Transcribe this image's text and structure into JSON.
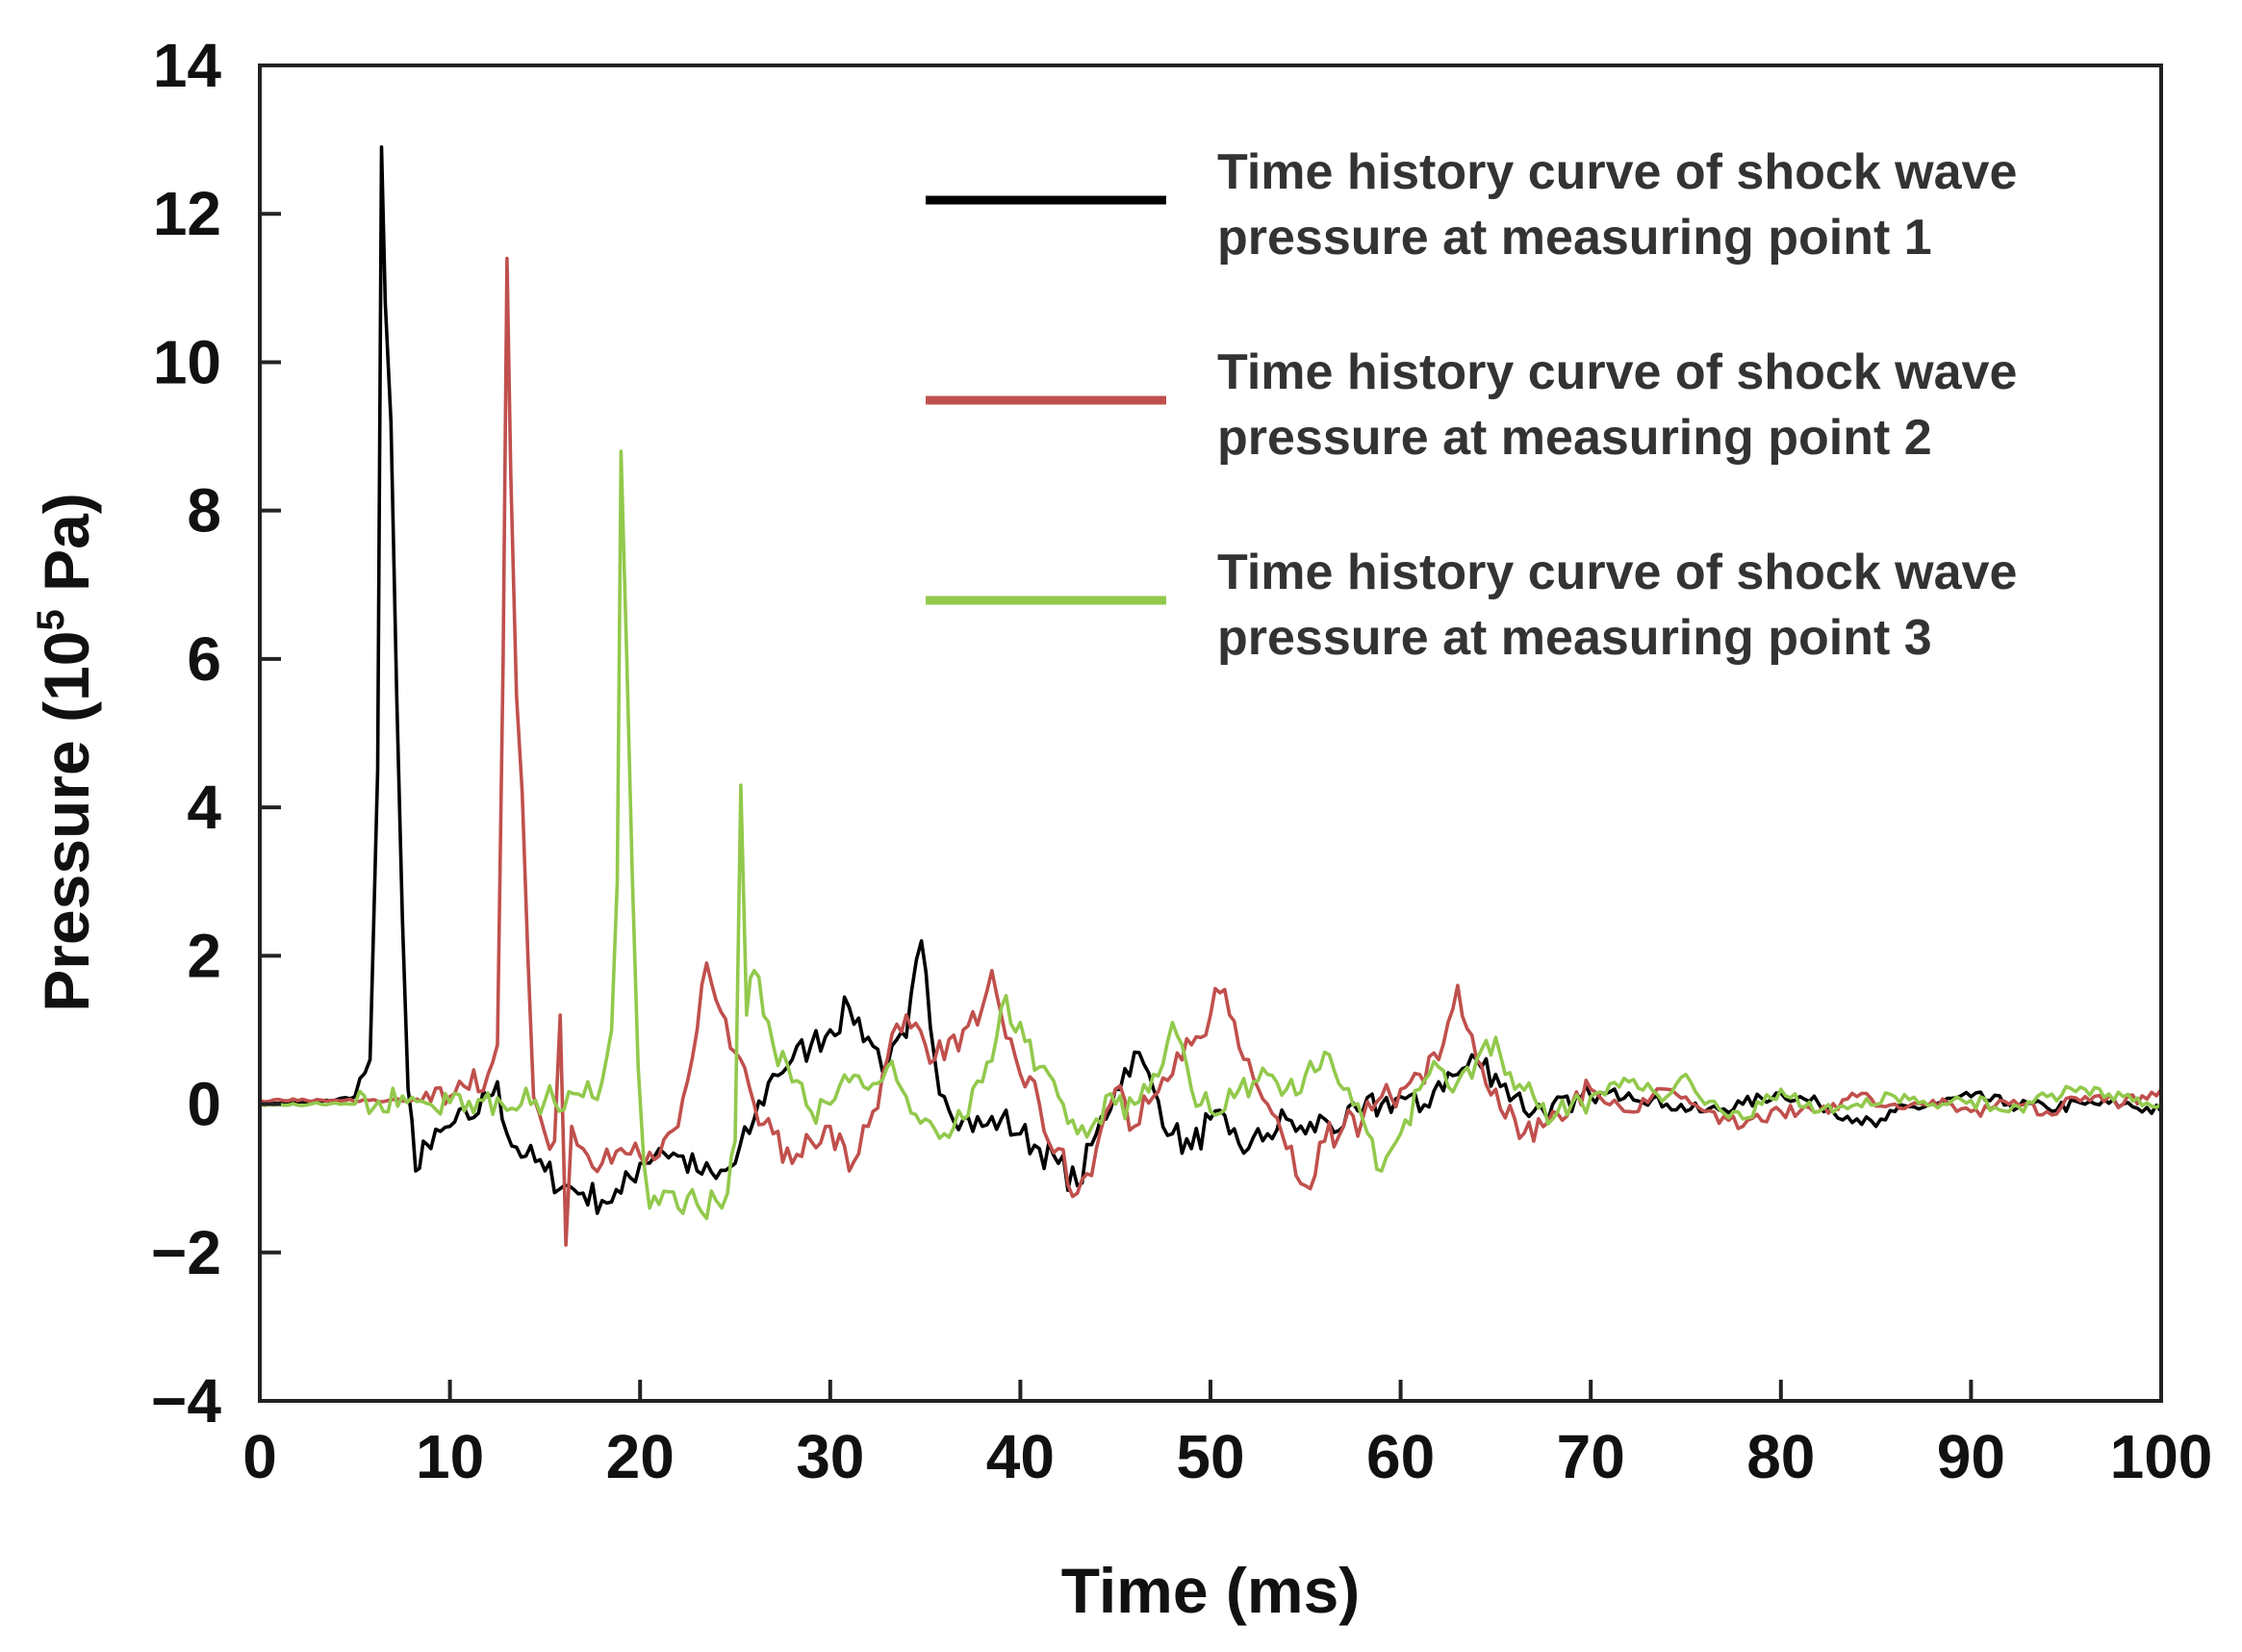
{
  "chart_data": {
    "type": "line",
    "xlabel": "Time (ms)",
    "ylabel_main": "Pressure (10",
    "ylabel_sup": "5",
    "ylabel_tail": " Pa)",
    "xlim": [
      0,
      100
    ],
    "ylim": [
      -4,
      14
    ],
    "x_ticks": [
      0,
      10,
      20,
      30,
      40,
      50,
      60,
      70,
      80,
      90,
      100
    ],
    "x_tick_labels": [
      "0",
      "10",
      "20",
      "30",
      "40",
      "50",
      "60",
      "70",
      "80",
      "90",
      "100"
    ],
    "y_ticks": [
      -4,
      -2,
      0,
      2,
      4,
      6,
      8,
      10,
      12,
      14
    ],
    "y_tick_labels": [
      "−4",
      "−2",
      "0",
      "2",
      "4",
      "6",
      "8",
      "10",
      "12",
      "14"
    ],
    "grid": false,
    "legend_position": "top-right",
    "series": [
      {
        "legend_line1": "Time history curve of shock wave",
        "legend_line2": "pressure at measuring point 1",
        "color": "#000000",
        "points": [
          [
            0,
            0.02
          ],
          [
            3,
            0.02
          ],
          [
            5,
            0.1
          ],
          [
            5.8,
            0.6
          ],
          [
            6.2,
            4.5
          ],
          [
            6.4,
            12.9
          ],
          [
            6.6,
            10.8
          ],
          [
            6.9,
            9.2
          ],
          [
            7.2,
            5.5
          ],
          [
            7.5,
            2.5
          ],
          [
            7.8,
            0.2
          ],
          [
            8.2,
            -0.9
          ],
          [
            8.6,
            -0.5
          ],
          [
            9,
            -0.6
          ],
          [
            10,
            -0.3
          ],
          [
            11,
            -0.2
          ],
          [
            12,
            0.1
          ],
          [
            12.5,
            0.3
          ],
          [
            13,
            -0.4
          ],
          [
            14,
            -0.7
          ],
          [
            15,
            -0.9
          ],
          [
            16,
            -1.1
          ],
          [
            17,
            -1.2
          ],
          [
            18,
            -1.3
          ],
          [
            19,
            -1.2
          ],
          [
            20,
            -0.8
          ],
          [
            21,
            -0.6
          ],
          [
            22,
            -0.7
          ],
          [
            23,
            -0.9
          ],
          [
            24,
            -1.0
          ],
          [
            25,
            -0.8
          ],
          [
            26,
            -0.2
          ],
          [
            27,
            0.4
          ],
          [
            28,
            0.6
          ],
          [
            29,
            0.8
          ],
          [
            30,
            1.0
          ],
          [
            31,
            1.3
          ],
          [
            32,
            0.9
          ],
          [
            33,
            0.5
          ],
          [
            34,
            0.9
          ],
          [
            34.8,
            2.2
          ],
          [
            35.5,
            0.6
          ],
          [
            36,
            0.1
          ],
          [
            37,
            -0.2
          ],
          [
            38,
            -0.3
          ],
          [
            39,
            -0.2
          ],
          [
            40,
            -0.4
          ],
          [
            41,
            -0.6
          ],
          [
            42,
            -0.8
          ],
          [
            43,
            -1.1
          ],
          [
            44,
            -0.4
          ],
          [
            45,
            0.2
          ],
          [
            46,
            0.7
          ],
          [
            47,
            0.2
          ],
          [
            48,
            -0.4
          ],
          [
            49,
            -0.6
          ],
          [
            50,
            -0.2
          ],
          [
            51,
            -0.4
          ],
          [
            52,
            -0.6
          ],
          [
            53,
            -0.4
          ],
          [
            54,
            -0.2
          ],
          [
            55,
            -0.4
          ],
          [
            56,
            -0.2
          ],
          [
            57,
            -0.3
          ],
          [
            58,
            -0.1
          ],
          [
            59,
            0.0
          ],
          [
            60,
            0.1
          ],
          [
            61,
            -0.1
          ],
          [
            62,
            0.3
          ],
          [
            63,
            0.4
          ],
          [
            64,
            0.6
          ],
          [
            65,
            0.4
          ],
          [
            66,
            0.1
          ],
          [
            67,
            -0.1
          ],
          [
            68,
            0.0
          ],
          [
            69,
            -0.1
          ],
          [
            70,
            0.1
          ],
          [
            72,
            0.15
          ],
          [
            74,
            0.0
          ],
          [
            76,
            -0.1
          ],
          [
            78,
            0.0
          ],
          [
            80,
            0.15
          ],
          [
            82,
            0.0
          ],
          [
            84,
            -0.2
          ],
          [
            85,
            -0.3
          ],
          [
            86,
            -0.1
          ],
          [
            88,
            0.0
          ],
          [
            90,
            0.1
          ],
          [
            92,
            0.0
          ],
          [
            94,
            -0.05
          ],
          [
            96,
            0.0
          ],
          [
            98,
            0.0
          ],
          [
            100,
            -0.1
          ]
        ]
      },
      {
        "legend_line1": "Time history curve of shock wave",
        "legend_line2": "pressure at measuring point 2",
        "color": "#c0504d",
        "points": [
          [
            0,
            0.05
          ],
          [
            4,
            0.05
          ],
          [
            8,
            0.05
          ],
          [
            10,
            0.1
          ],
          [
            11,
            0.2
          ],
          [
            12,
            0.4
          ],
          [
            12.5,
            0.8
          ],
          [
            12.8,
            6.0
          ],
          [
            13.0,
            11.4
          ],
          [
            13.2,
            8.5
          ],
          [
            13.5,
            5.5
          ],
          [
            13.8,
            4.2
          ],
          [
            14.1,
            2.0
          ],
          [
            14.4,
            0.1
          ],
          [
            15,
            -0.4
          ],
          [
            15.5,
            -0.5
          ],
          [
            15.8,
            1.2
          ],
          [
            16.1,
            -1.9
          ],
          [
            16.4,
            -0.3
          ],
          [
            17,
            -0.6
          ],
          [
            18,
            -0.8
          ],
          [
            19,
            -0.6
          ],
          [
            20,
            -0.7
          ],
          [
            21,
            -0.7
          ],
          [
            22,
            -0.3
          ],
          [
            23,
            1.0
          ],
          [
            23.5,
            1.9
          ],
          [
            24,
            1.4
          ],
          [
            25,
            0.7
          ],
          [
            26,
            0.0
          ],
          [
            27,
            -0.4
          ],
          [
            28,
            -0.8
          ],
          [
            29,
            -0.5
          ],
          [
            30,
            -0.3
          ],
          [
            31,
            -0.9
          ],
          [
            32,
            -0.3
          ],
          [
            33,
            0.6
          ],
          [
            34,
            1.2
          ],
          [
            35,
            0.8
          ],
          [
            36,
            0.6
          ],
          [
            37,
            1.0
          ],
          [
            38,
            1.3
          ],
          [
            38.5,
            1.8
          ],
          [
            39,
            1.2
          ],
          [
            40,
            0.4
          ],
          [
            41,
            0.0
          ],
          [
            42,
            -0.6
          ],
          [
            43,
            -1.2
          ],
          [
            44,
            -0.6
          ],
          [
            45,
            0.2
          ],
          [
            46,
            -0.3
          ],
          [
            47,
            0.1
          ],
          [
            48,
            0.4
          ],
          [
            49,
            0.8
          ],
          [
            50,
            1.2
          ],
          [
            50.5,
            1.5
          ],
          [
            51,
            1.2
          ],
          [
            52,
            0.6
          ],
          [
            53,
            0.0
          ],
          [
            54,
            -0.6
          ],
          [
            55,
            -1.1
          ],
          [
            56,
            -0.5
          ],
          [
            57,
            -0.3
          ],
          [
            58,
            -0.2
          ],
          [
            59,
            0.1
          ],
          [
            60,
            0.2
          ],
          [
            61,
            0.4
          ],
          [
            62,
            0.6
          ],
          [
            63,
            1.6
          ],
          [
            64,
            0.6
          ],
          [
            65,
            0.2
          ],
          [
            66,
            -0.2
          ],
          [
            67,
            -0.5
          ],
          [
            68,
            -0.1
          ],
          [
            69,
            0.0
          ],
          [
            70,
            0.2
          ],
          [
            72,
            -0.1
          ],
          [
            74,
            0.2
          ],
          [
            76,
            -0.1
          ],
          [
            78,
            -0.3
          ],
          [
            80,
            -0.1
          ],
          [
            82,
            -0.1
          ],
          [
            84,
            0.1
          ],
          [
            86,
            0.0
          ],
          [
            88,
            0.05
          ],
          [
            90,
            -0.1
          ],
          [
            92,
            0.0
          ],
          [
            94,
            -0.1
          ],
          [
            96,
            0.1
          ],
          [
            98,
            0.0
          ],
          [
            100,
            0.2
          ]
        ]
      },
      {
        "legend_line1": "Time history curve of shock wave",
        "legend_line2": "pressure at measuring point 3",
        "color": "#92c94c",
        "points": [
          [
            0,
            0.0
          ],
          [
            5,
            0.0
          ],
          [
            10,
            0.02
          ],
          [
            15,
            0.05
          ],
          [
            17,
            0.1
          ],
          [
            18,
            0.3
          ],
          [
            18.5,
            1.0
          ],
          [
            18.8,
            3.0
          ],
          [
            19.0,
            8.8
          ],
          [
            19.3,
            6.0
          ],
          [
            19.6,
            3.0
          ],
          [
            19.9,
            0.5
          ],
          [
            20.2,
            -0.8
          ],
          [
            20.5,
            -1.4
          ],
          [
            21,
            -1.35
          ],
          [
            22,
            -1.4
          ],
          [
            23,
            -1.35
          ],
          [
            24,
            -1.3
          ],
          [
            24.6,
            -1.2
          ],
          [
            25.0,
            -0.5
          ],
          [
            25.3,
            4.3
          ],
          [
            25.6,
            1.2
          ],
          [
            26,
            1.8
          ],
          [
            27,
            0.8
          ],
          [
            28,
            0.3
          ],
          [
            29,
            -0.1
          ],
          [
            30,
            0.0
          ],
          [
            31,
            0.3
          ],
          [
            32,
            0.2
          ],
          [
            33,
            0.5
          ],
          [
            34,
            0.1
          ],
          [
            35,
            -0.2
          ],
          [
            36,
            -0.4
          ],
          [
            37,
            -0.2
          ],
          [
            38,
            0.3
          ],
          [
            39,
            1.3
          ],
          [
            40,
            1.1
          ],
          [
            41,
            0.5
          ],
          [
            42,
            0.1
          ],
          [
            43,
            -0.4
          ],
          [
            44,
            -0.2
          ],
          [
            45,
            0.0
          ],
          [
            46,
            0.0
          ],
          [
            47,
            0.4
          ],
          [
            48,
            1.1
          ],
          [
            48.5,
            0.8
          ],
          [
            49,
            0.2
          ],
          [
            50,
            -0.1
          ],
          [
            51,
            0.2
          ],
          [
            52,
            0.1
          ],
          [
            53,
            0.4
          ],
          [
            54,
            0.2
          ],
          [
            55,
            0.4
          ],
          [
            56,
            0.7
          ],
          [
            57,
            0.2
          ],
          [
            58,
            -0.2
          ],
          [
            59,
            -0.9
          ],
          [
            60,
            -0.4
          ],
          [
            61,
            0.2
          ],
          [
            62,
            0.5
          ],
          [
            63,
            0.3
          ],
          [
            64,
            0.6
          ],
          [
            65,
            0.9
          ],
          [
            66,
            0.2
          ],
          [
            67,
            0.1
          ],
          [
            68,
            -0.2
          ],
          [
            69,
            0.0
          ],
          [
            70,
            0.1
          ],
          [
            72,
            0.3
          ],
          [
            74,
            0.1
          ],
          [
            75,
            0.4
          ],
          [
            76,
            0.0
          ],
          [
            78,
            -0.2
          ],
          [
            80,
            0.2
          ],
          [
            82,
            -0.1
          ],
          [
            84,
            0.0
          ],
          [
            86,
            0.1
          ],
          [
            88,
            0.0
          ],
          [
            90,
            0.05
          ],
          [
            92,
            -0.1
          ],
          [
            94,
            0.1
          ],
          [
            96,
            0.2
          ],
          [
            98,
            0.1
          ],
          [
            100,
            0.0
          ]
        ]
      }
    ]
  }
}
